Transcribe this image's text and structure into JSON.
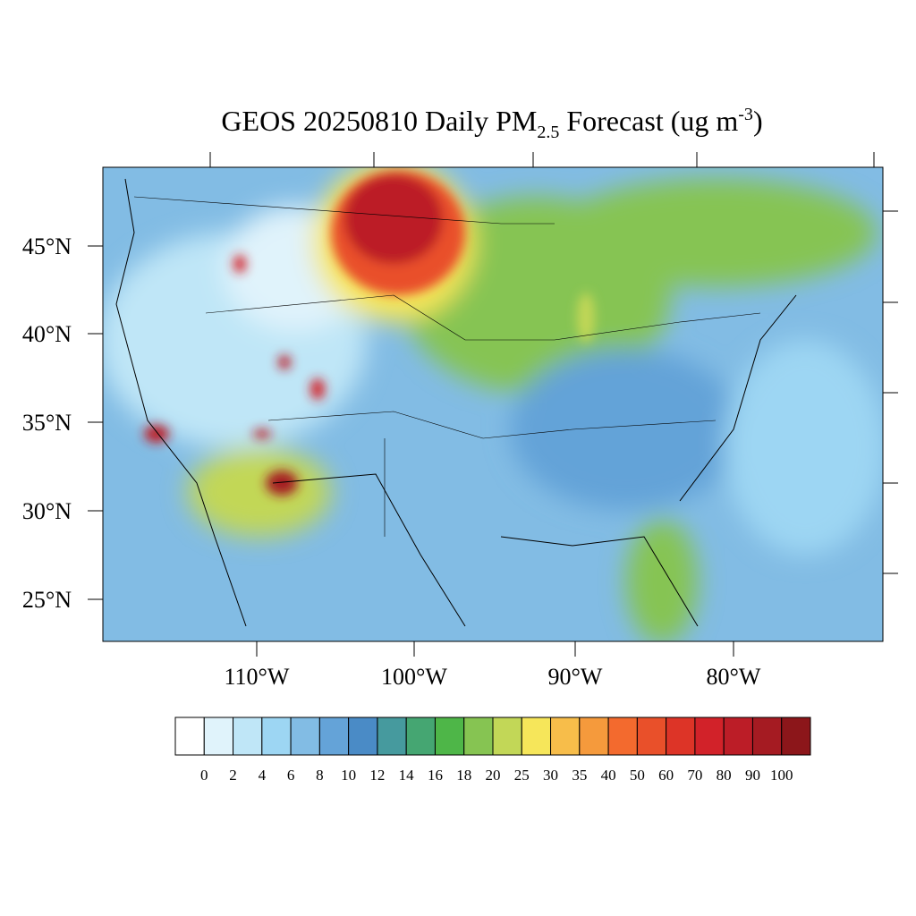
{
  "title_parts": [
    "GEOS 20250810 Daily PM",
    "2.5",
    " Forecast (ug m",
    "-3",
    ")"
  ],
  "map": {
    "lat_labels": [
      "45°N",
      "40°N",
      "35°N",
      "30°N",
      "25°N"
    ],
    "lon_labels": [
      "110°W",
      "100°W",
      "90°W",
      "80°W"
    ]
  },
  "colorbar": {
    "levels": [
      0,
      2,
      4,
      6,
      8,
      10,
      12,
      14,
      16,
      18,
      20,
      25,
      30,
      35,
      40,
      50,
      60,
      70,
      80,
      90,
      100
    ],
    "colors": [
      "#ffffff",
      "#e0f3fb",
      "#bfe6f7",
      "#9dd6f3",
      "#82bce4",
      "#64a3d8",
      "#4a8bc6",
      "#469a9e",
      "#45a672",
      "#4eb648",
      "#86c452",
      "#c2d757",
      "#f6e65a",
      "#f7bd4a",
      "#f59a3c",
      "#f36a2e",
      "#e9502a",
      "#dd3427",
      "#d22229",
      "#bc1d27",
      "#a51b22",
      "#8c161a"
    ]
  }
}
